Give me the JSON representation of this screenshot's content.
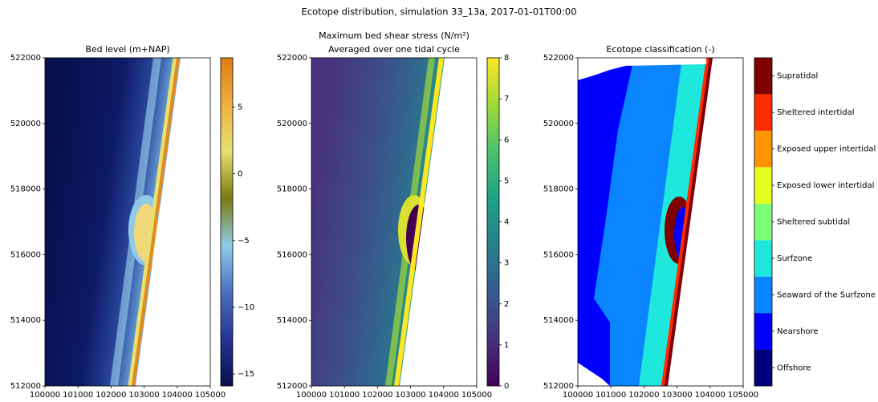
{
  "title": "Ecotope distribution, simulation 33_13a, 2017-01-01T00:00",
  "chart_data": [
    {
      "type": "map",
      "title": "Bed level (m+NAP)",
      "xlim": [
        100000,
        105000
      ],
      "xticks": [
        100000,
        101000,
        102000,
        103000,
        104000,
        105000
      ],
      "ylim": [
        512000,
        522000
      ],
      "yticks": [
        512000,
        514000,
        516000,
        518000,
        520000,
        522000
      ],
      "colorbar": {
        "lim": [
          -15.9,
          8.7
        ],
        "ticks": [
          {
            "value": -15,
            "label": "−15"
          },
          {
            "value": -10,
            "label": "−10"
          },
          {
            "value": -5,
            "label": "−5"
          },
          0,
          5
        ],
        "colors": [
          "#08104e",
          "#253494",
          "#4a6fc0",
          "#8fcbe8",
          "#7a7a10",
          "#e8e070",
          "#f0b040",
          "#e07a10"
        ]
      }
    },
    {
      "type": "map",
      "title": "Maximum bed shear stress (N/m²)",
      "subtitle": "Averaged over one tidal cycle",
      "xlim": [
        100000,
        105000
      ],
      "xticks": [
        100000,
        101000,
        102000,
        103000,
        104000,
        105000
      ],
      "ylim": [
        512000,
        522000
      ],
      "yticks": [
        512000,
        514000,
        516000,
        518000,
        520000,
        522000
      ],
      "colorbar": {
        "lim": [
          0,
          8
        ],
        "ticks": [
          0,
          1,
          2,
          3,
          4,
          5,
          6,
          7,
          8
        ],
        "colors": [
          "#440154",
          "#46327e",
          "#365c8d",
          "#277f8e",
          "#1fa187",
          "#4ac16d",
          "#a0da39",
          "#fde725"
        ]
      }
    },
    {
      "type": "map",
      "title": "Ecotope classification (-)",
      "xlim": [
        100000,
        105000
      ],
      "xticks": [
        100000,
        101000,
        102000,
        103000,
        104000,
        105000
      ],
      "ylim": [
        512000,
        522000
      ],
      "yticks": [
        512000,
        514000,
        516000,
        518000,
        520000,
        522000
      ],
      "legend": {
        "categories": [
          "Offshore",
          "Nearshore",
          "Seaward of the Surfzone",
          "Surfzone",
          "Sheltered subtidal",
          "Exposed lower intertidal",
          "Exposed upper intertidal",
          "Sheltered intertidal",
          "Supratidal"
        ],
        "colors": [
          "#00007f",
          "#0000ff",
          "#0a84ff",
          "#1ee8dc",
          "#7cff79",
          "#e4ff1a",
          "#ff9400",
          "#ff2c00",
          "#800000"
        ]
      }
    }
  ]
}
